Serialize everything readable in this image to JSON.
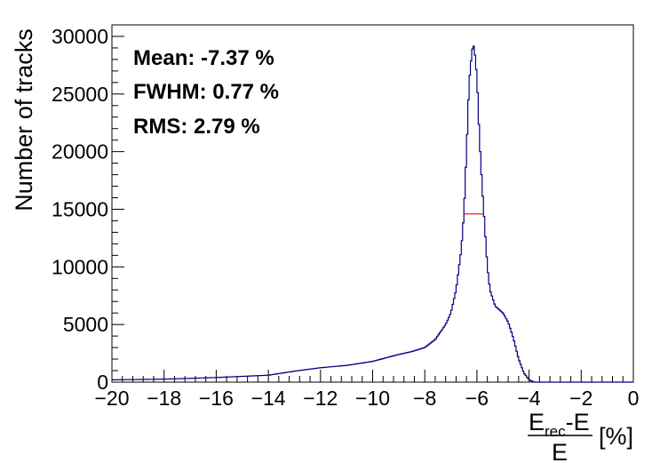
{
  "chart_data": {
    "type": "histogram",
    "xlabel": {
      "numerator_main": "E",
      "numerator_sub": "rec",
      "numerator_rest": "-E",
      "denominator": "E",
      "unit": "[%]"
    },
    "ylabel": "Number of tracks",
    "xlim": [
      -20,
      0
    ],
    "ylim": [
      0,
      31000
    ],
    "x_ticks": [
      "−20",
      "−18",
      "−16",
      "−14",
      "−12",
      "−10",
      "−8",
      "−6",
      "−4",
      "−2",
      "0"
    ],
    "x_tick_values": [
      -20,
      -18,
      -16,
      -14,
      -12,
      -10,
      -8,
      -6,
      -4,
      -2,
      0
    ],
    "y_ticks": [
      "0",
      "5000",
      "10000",
      "15000",
      "20000",
      "25000",
      "30000"
    ],
    "y_tick_values": [
      0,
      5000,
      10000,
      15000,
      20000,
      25000,
      30000
    ],
    "stats": {
      "mean": "Mean: -7.37 %",
      "fwhm": "FWHM: 0.77 %",
      "rms": "RMS: 2.79 %"
    },
    "histogram_color": "#000080",
    "fwhm_line": {
      "x_start": -6.53,
      "x_end": -5.76,
      "y": 14600,
      "color": "#ff0000"
    },
    "profile_points": [
      [
        -20,
        200
      ],
      [
        -18,
        260
      ],
      [
        -16,
        400
      ],
      [
        -14,
        600
      ],
      [
        -13,
        950
      ],
      [
        -12,
        1250
      ],
      [
        -11,
        1450
      ],
      [
        -10,
        1800
      ],
      [
        -9.5,
        2100
      ],
      [
        -9,
        2400
      ],
      [
        -8.5,
        2650
      ],
      [
        -8,
        3000
      ],
      [
        -7.6,
        3700
      ],
      [
        -7.2,
        5000
      ],
      [
        -7,
        6000
      ],
      [
        -6.8,
        8000
      ],
      [
        -6.6,
        11500
      ],
      [
        -6.5,
        14600
      ],
      [
        -6.4,
        20000
      ],
      [
        -6.3,
        26000
      ],
      [
        -6.2,
        28500
      ],
      [
        -6.15,
        29300
      ],
      [
        -6.1,
        29000
      ],
      [
        -6.0,
        26500
      ],
      [
        -5.9,
        21000
      ],
      [
        -5.8,
        17000
      ],
      [
        -5.7,
        13500
      ],
      [
        -5.6,
        10000
      ],
      [
        -5.5,
        8000
      ],
      [
        -5.3,
        6600
      ],
      [
        -5.1,
        6200
      ],
      [
        -5.0,
        6000
      ],
      [
        -4.8,
        5200
      ],
      [
        -4.6,
        3800
      ],
      [
        -4.4,
        2000
      ],
      [
        -4.2,
        800
      ],
      [
        -4.0,
        200
      ],
      [
        -3.8,
        0
      ],
      [
        0,
        0
      ]
    ]
  }
}
